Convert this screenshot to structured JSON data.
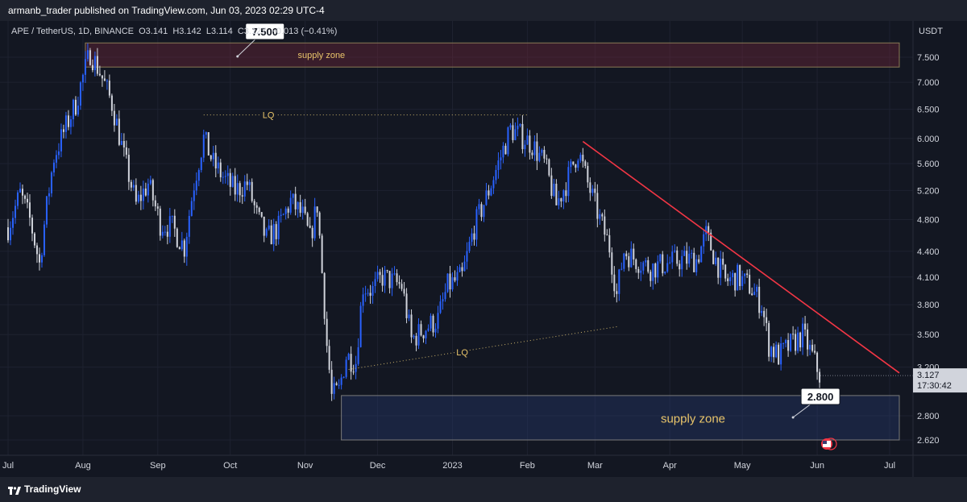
{
  "publisher_line": "armanb_trader published on TradingView.com, Jun 03, 2023 02:29 UTC-4",
  "symbol_line": "APE / TetherUS, 1D, BINANCE  O3.141  H3.142  L3.114  C3.127  −0.013 (−0.41%)",
  "footer_brand": "TradingView",
  "colors": {
    "background": "#131722",
    "up_candle": "#2962ff",
    "down_candle": "#d1d4dc",
    "trendline": "#f23645",
    "annotation_text": "#e8c46a"
  },
  "chart_data": {
    "type": "candlestick",
    "symbol": "APE / TetherUS",
    "interval": "1D",
    "exchange": "BINANCE",
    "last_bar": {
      "open": 3.141,
      "high": 3.142,
      "low": 3.114,
      "close": 3.127,
      "change": -0.013,
      "change_pct": -0.41
    },
    "y_axis": {
      "unit": "USDT",
      "scale": "log",
      "range": [
        2.52,
        8.3
      ],
      "ticks": [
        "7.500",
        "7.000",
        "6.500",
        "6.000",
        "5.600",
        "5.200",
        "4.800",
        "4.400",
        "4.100",
        "3.800",
        "3.500",
        "3.200",
        "2.800",
        "2.620"
      ]
    },
    "x_axis": {
      "range": [
        "2022-07-01",
        "2023-07-01"
      ],
      "ticks": [
        {
          "label": "Jul",
          "date": "2022-07-01"
        },
        {
          "label": "Aug",
          "date": "2022-08-01"
        },
        {
          "label": "Sep",
          "date": "2022-09-01"
        },
        {
          "label": "Oct",
          "date": "2022-10-01"
        },
        {
          "label": "Nov",
          "date": "2022-11-01"
        },
        {
          "label": "Dec",
          "date": "2022-12-01"
        },
        {
          "label": "2023",
          "date": "2023-01-01"
        },
        {
          "label": "Feb",
          "date": "2023-02-01"
        },
        {
          "label": "Mar",
          "date": "2023-03-01"
        },
        {
          "label": "Apr",
          "date": "2023-04-01"
        },
        {
          "label": "May",
          "date": "2023-05-01"
        },
        {
          "label": "Jun",
          "date": "2023-06-01"
        },
        {
          "label": "Jul",
          "date": "2023-07-01"
        }
      ]
    },
    "price_path": [
      [
        "2022-07-01",
        4.7
      ],
      [
        "2022-07-06",
        5.15
      ],
      [
        "2022-07-10",
        4.8
      ],
      [
        "2022-07-14",
        4.25
      ],
      [
        "2022-07-20",
        5.7
      ],
      [
        "2022-07-25",
        6.2
      ],
      [
        "2022-07-29",
        6.6
      ],
      [
        "2022-08-04",
        7.6
      ],
      [
        "2022-08-08",
        7.2
      ],
      [
        "2022-08-13",
        6.6
      ],
      [
        "2022-08-18",
        5.7
      ],
      [
        "2022-08-23",
        5.0
      ],
      [
        "2022-08-28",
        5.3
      ],
      [
        "2022-09-02",
        4.75
      ],
      [
        "2022-09-07",
        4.7
      ],
      [
        "2022-09-12",
        4.45
      ],
      [
        "2022-09-16",
        5.3
      ],
      [
        "2022-09-20",
        6.0
      ],
      [
        "2022-09-24",
        5.6
      ],
      [
        "2022-09-29",
        5.35
      ],
      [
        "2022-10-03",
        5.2
      ],
      [
        "2022-10-08",
        5.3
      ],
      [
        "2022-10-12",
        4.85
      ],
      [
        "2022-10-16",
        4.55
      ],
      [
        "2022-10-21",
        4.7
      ],
      [
        "2022-10-26",
        5.05
      ],
      [
        "2022-10-31",
        4.85
      ],
      [
        "2022-11-03",
        4.55
      ],
      [
        "2022-11-06",
        5.0
      ],
      [
        "2022-11-08",
        4.15
      ],
      [
        "2022-11-10",
        3.4
      ],
      [
        "2022-11-12",
        2.95
      ],
      [
        "2022-11-15",
        3.0
      ],
      [
        "2022-11-18",
        3.3
      ],
      [
        "2022-11-22",
        3.25
      ],
      [
        "2022-11-25",
        4.0
      ],
      [
        "2022-11-29",
        3.95
      ],
      [
        "2022-12-03",
        4.1
      ],
      [
        "2022-12-07",
        4.05
      ],
      [
        "2022-12-11",
        4.0
      ],
      [
        "2022-12-15",
        3.45
      ],
      [
        "2022-12-20",
        3.55
      ],
      [
        "2022-12-26",
        3.65
      ],
      [
        "2022-12-30",
        4.0
      ],
      [
        "2023-01-05",
        4.1
      ],
      [
        "2023-01-10",
        4.7
      ],
      [
        "2023-01-15",
        5.1
      ],
      [
        "2023-01-20",
        5.6
      ],
      [
        "2023-01-25",
        6.15
      ],
      [
        "2023-01-29",
        6.05
      ],
      [
        "2023-02-03",
        5.9
      ],
      [
        "2023-02-08",
        5.6
      ],
      [
        "2023-02-13",
        5.0
      ],
      [
        "2023-02-17",
        5.3
      ],
      [
        "2023-02-22",
        5.8
      ],
      [
        "2023-02-26",
        5.3
      ],
      [
        "2023-03-03",
        4.8
      ],
      [
        "2023-03-07",
        4.45
      ],
      [
        "2023-03-10",
        3.9
      ],
      [
        "2023-03-13",
        4.4
      ],
      [
        "2023-03-18",
        4.3
      ],
      [
        "2023-03-24",
        4.2
      ],
      [
        "2023-03-30",
        4.25
      ],
      [
        "2023-04-06",
        4.3
      ],
      [
        "2023-04-12",
        4.3
      ],
      [
        "2023-04-16",
        4.6
      ],
      [
        "2023-04-20",
        4.3
      ],
      [
        "2023-04-24",
        4.05
      ],
      [
        "2023-04-29",
        4.1
      ],
      [
        "2023-05-04",
        4.0
      ],
      [
        "2023-05-09",
        3.8
      ],
      [
        "2023-05-12",
        3.4
      ],
      [
        "2023-05-16",
        3.3
      ],
      [
        "2023-05-21",
        3.4
      ],
      [
        "2023-05-26",
        3.5
      ],
      [
        "2023-05-30",
        3.3
      ],
      [
        "2023-06-02",
        3.13
      ]
    ],
    "annotations": {
      "upper_zone": {
        "label": "supply zone",
        "price_low": 7.3,
        "price_high": 7.8,
        "from": "2022-08-02",
        "to": "2023-07-05"
      },
      "lower_zone": {
        "label": "supply zone",
        "price_low": 2.62,
        "price_high": 2.96,
        "from": "2022-11-16",
        "to": "2023-07-05"
      },
      "callouts": [
        {
          "text": "7.500",
          "date": "2022-10-04",
          "price": 7.5
        },
        {
          "text": "2.800",
          "date": "2023-05-22",
          "price": 2.8
        }
      ],
      "lq_high": {
        "label": "LQ",
        "from": "2022-09-20",
        "to": "2023-02-01",
        "price": 6.4
      },
      "lq_low": {
        "label": "LQ",
        "from": "2022-11-19",
        "to": "2023-03-11",
        "p1": 3.18,
        "p2": 3.58
      },
      "trendline": {
        "from": [
          "2023-02-24",
          5.95
        ],
        "to": [
          "2023-07-05",
          3.15
        ]
      }
    },
    "price_label": {
      "price": "3.127",
      "countdown": "17:30:42"
    }
  }
}
